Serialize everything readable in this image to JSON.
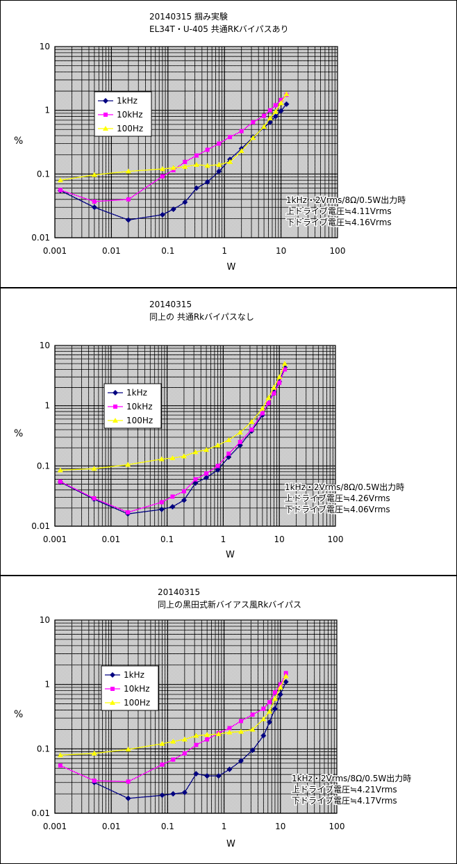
{
  "chart_data": [
    {
      "type": "line",
      "title": "20140315 掴み実験",
      "subtitle": "EL34T・U-405 共通RKバイパスあり",
      "xlabel": "W",
      "ylabel": "%",
      "x_scale": "log",
      "y_scale": "log",
      "xlim": [
        0.001,
        100
      ],
      "ylim": [
        0.01,
        10
      ],
      "xticks": [
        "0.001",
        "0.01",
        "0.1",
        "1",
        "10",
        "100"
      ],
      "yticks": [
        "0.01",
        "0.1",
        "1",
        "10"
      ],
      "grid": true,
      "legend": "top-left",
      "note": [
        "1kHz・2Vrms/8Ω/0.5W出力時",
        "上ドライブ電圧≒4.11Vrms",
        "下ドライブ電圧≒4.16Vrms"
      ],
      "series": [
        {
          "name": "1kHz",
          "color": "#000080",
          "marker": "diamond",
          "x": [
            0.00125,
            0.005,
            0.02,
            0.08,
            0.125,
            0.2,
            0.32,
            0.5,
            0.8,
            1.25,
            2,
            3.2,
            5,
            6.4,
            8,
            10,
            12.5
          ],
          "y": [
            0.055,
            0.03,
            0.019,
            0.023,
            0.028,
            0.036,
            0.06,
            0.075,
            0.11,
            0.17,
            0.25,
            0.38,
            0.53,
            0.65,
            0.8,
            0.98,
            1.25
          ]
        },
        {
          "name": "10kHz",
          "color": "#FF00FF",
          "marker": "square",
          "x": [
            0.00125,
            0.005,
            0.02,
            0.08,
            0.125,
            0.2,
            0.32,
            0.5,
            0.8,
            1.25,
            2,
            3.2,
            5,
            6.4,
            8,
            10,
            12.5
          ],
          "y": [
            0.056,
            0.037,
            0.04,
            0.092,
            0.115,
            0.155,
            0.195,
            0.24,
            0.3,
            0.38,
            0.47,
            0.65,
            0.82,
            1.0,
            1.2,
            1.45,
            1.75
          ]
        },
        {
          "name": "100Hz",
          "color": "#FFFF00",
          "marker": "triangle",
          "x": [
            0.00125,
            0.005,
            0.02,
            0.08,
            0.125,
            0.2,
            0.32,
            0.5,
            0.8,
            1.25,
            2,
            3.2,
            5,
            6.4,
            8,
            10,
            12.5
          ],
          "y": [
            0.08,
            0.097,
            0.11,
            0.12,
            0.125,
            0.13,
            0.14,
            0.135,
            0.14,
            0.155,
            0.23,
            0.37,
            0.55,
            0.75,
            0.95,
            1.3,
            1.8
          ]
        }
      ]
    },
    {
      "type": "line",
      "title": "20140315",
      "subtitle": "同上の 共通Rkバイパスなし",
      "xlabel": "W",
      "ylabel": "%",
      "x_scale": "log",
      "y_scale": "log",
      "xlim": [
        0.001,
        100
      ],
      "ylim": [
        0.01,
        10
      ],
      "xticks": [
        "0.001",
        "0.01",
        "0.1",
        "1",
        "10",
        "100"
      ],
      "yticks": [
        "0.01",
        "0.1",
        "1",
        "10"
      ],
      "grid": true,
      "legend": "top-left",
      "note": [
        "1kHz・2Vrms/8Ω/0.5W出力時",
        "上ドライブ電圧≒4.26Vrms",
        "下ドライブ電圧≒4.06Vrms"
      ],
      "series": [
        {
          "name": "1kHz",
          "color": "#000080",
          "marker": "diamond",
          "x": [
            0.00125,
            0.005,
            0.02,
            0.08,
            0.125,
            0.2,
            0.32,
            0.5,
            0.8,
            1.25,
            2,
            3.2,
            5,
            6.4,
            8,
            10,
            12.5
          ],
          "y": [
            0.054,
            0.028,
            0.016,
            0.019,
            0.021,
            0.027,
            0.052,
            0.064,
            0.086,
            0.14,
            0.22,
            0.38,
            0.7,
            1.1,
            1.7,
            2.5,
            4.3
          ]
        },
        {
          "name": "10kHz",
          "color": "#FF00FF",
          "marker": "square",
          "x": [
            0.00125,
            0.005,
            0.02,
            0.08,
            0.125,
            0.2,
            0.32,
            0.5,
            0.8,
            1.25,
            2,
            3.2,
            5,
            6.4,
            8,
            10,
            12.5
          ],
          "y": [
            0.055,
            0.029,
            0.017,
            0.025,
            0.031,
            0.038,
            0.06,
            0.075,
            0.1,
            0.16,
            0.25,
            0.4,
            0.75,
            1.1,
            1.6,
            2.4,
            4.0
          ]
        },
        {
          "name": "100Hz",
          "color": "#FFFF00",
          "marker": "triangle",
          "x": [
            0.00125,
            0.005,
            0.02,
            0.08,
            0.125,
            0.2,
            0.32,
            0.5,
            0.8,
            1.25,
            2,
            3.2,
            5,
            6.4,
            8,
            10,
            12.5
          ],
          "y": [
            0.085,
            0.09,
            0.105,
            0.13,
            0.135,
            0.145,
            0.17,
            0.185,
            0.22,
            0.27,
            0.36,
            0.54,
            0.9,
            1.35,
            2.0,
            3.0,
            5.0
          ]
        }
      ]
    },
    {
      "type": "line",
      "title": "20140315",
      "subtitle": "同上の黒田式新バイアス風Rkバイパス",
      "xlabel": "W",
      "ylabel": "%",
      "x_scale": "log",
      "y_scale": "log",
      "xlim": [
        0.001,
        100
      ],
      "ylim": [
        0.01,
        10
      ],
      "xticks": [
        "0.001",
        "0.01",
        "0.1",
        "1",
        "10",
        "100"
      ],
      "yticks": [
        "0.01",
        "0.1",
        "1",
        "10"
      ],
      "grid": true,
      "legend": "top-left",
      "note": [
        "1kHz・2Vrms/8Ω/0.5W出力時",
        "上ドライブ電圧≒4.21Vrms",
        "下ドライブ電圧≒4.17Vrms"
      ],
      "series": [
        {
          "name": "1kHz",
          "color": "#000080",
          "marker": "diamond",
          "x": [
            0.005,
            0.02,
            0.08,
            0.125,
            0.2,
            0.32,
            0.5,
            0.8,
            1.25,
            2,
            3.2,
            5,
            6.4,
            8,
            10,
            12.5
          ],
          "y": [
            0.03,
            0.017,
            0.019,
            0.02,
            0.021,
            0.041,
            0.038,
            0.038,
            0.048,
            0.065,
            0.095,
            0.16,
            0.26,
            0.42,
            0.7,
            1.1
          ]
        },
        {
          "name": "10kHz",
          "color": "#FF00FF",
          "marker": "square",
          "x": [
            0.00125,
            0.005,
            0.02,
            0.08,
            0.125,
            0.2,
            0.32,
            0.5,
            0.8,
            1.25,
            2,
            3.2,
            5,
            6.4,
            8,
            10,
            12.5
          ],
          "y": [
            0.055,
            0.032,
            0.031,
            0.057,
            0.068,
            0.085,
            0.115,
            0.14,
            0.175,
            0.21,
            0.27,
            0.34,
            0.42,
            0.53,
            0.75,
            1.0,
            1.5
          ]
        },
        {
          "name": "100Hz",
          "color": "#FFFF00",
          "marker": "triangle",
          "x": [
            0.00125,
            0.005,
            0.02,
            0.08,
            0.125,
            0.2,
            0.32,
            0.5,
            0.8,
            1.25,
            2,
            3.2,
            5,
            6.4,
            8,
            10,
            12.5
          ],
          "y": [
            0.08,
            0.085,
            0.098,
            0.12,
            0.13,
            0.14,
            0.16,
            0.165,
            0.17,
            0.18,
            0.185,
            0.2,
            0.29,
            0.38,
            0.6,
            0.9,
            1.35
          ]
        }
      ]
    }
  ]
}
